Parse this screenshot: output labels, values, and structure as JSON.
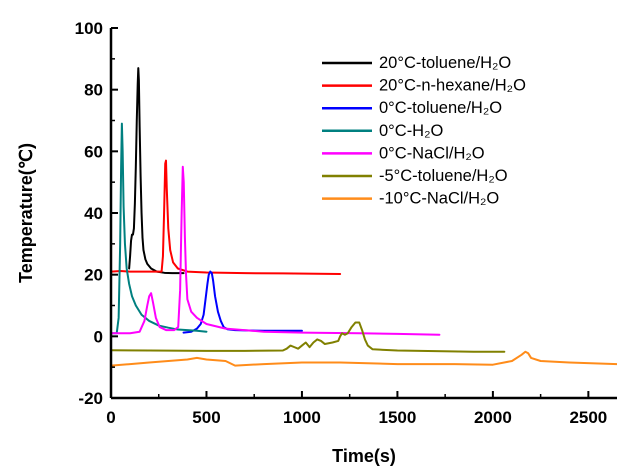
{
  "chart_data": {
    "type": "line",
    "xlabel": "Time(s)",
    "ylabel": "Temperature(℃)",
    "xlim": [
      0,
      2650
    ],
    "ylim": [
      -20,
      100
    ],
    "x_ticks": [
      "0",
      "500",
      "1000",
      "1500",
      "2000",
      "2500"
    ],
    "y_ticks": [
      "-20",
      "0",
      "20",
      "40",
      "60",
      "80",
      "100"
    ],
    "legend_position": "top-right",
    "grid": false,
    "series": [
      {
        "name": "20°C-toluene/H₂O",
        "color": "#000000",
        "points": [
          [
            95,
            22
          ],
          [
            100,
            26
          ],
          [
            105,
            31
          ],
          [
            110,
            33
          ],
          [
            115,
            33
          ],
          [
            120,
            35
          ],
          [
            125,
            43
          ],
          [
            130,
            55
          ],
          [
            135,
            70
          ],
          [
            140,
            82
          ],
          [
            143,
            87
          ],
          [
            146,
            83
          ],
          [
            150,
            68
          ],
          [
            155,
            52
          ],
          [
            160,
            40
          ],
          [
            165,
            32
          ],
          [
            170,
            28
          ],
          [
            180,
            25
          ],
          [
            190,
            23.5
          ],
          [
            210,
            22
          ],
          [
            240,
            21
          ],
          [
            280,
            20.6
          ],
          [
            320,
            20.5
          ],
          [
            380,
            20.5
          ]
        ]
      },
      {
        "name": "20°C-n-hexane/H₂O",
        "color": "#ff0000",
        "points": [
          [
            0,
            21
          ],
          [
            50,
            21.2
          ],
          [
            100,
            21
          ],
          [
            150,
            21
          ],
          [
            200,
            21
          ],
          [
            250,
            21
          ],
          [
            265,
            21
          ],
          [
            272,
            26
          ],
          [
            278,
            40
          ],
          [
            284,
            56
          ],
          [
            288,
            57
          ],
          [
            292,
            48
          ],
          [
            300,
            35
          ],
          [
            310,
            28
          ],
          [
            325,
            24
          ],
          [
            350,
            22
          ],
          [
            400,
            21
          ],
          [
            500,
            20.7
          ],
          [
            700,
            20.5
          ],
          [
            900,
            20.4
          ],
          [
            1200,
            20.2
          ]
        ]
      },
      {
        "name": "0°C-toluene/H₂O",
        "color": "#0000ff",
        "points": [
          [
            380,
            1.2
          ],
          [
            420,
            1.5
          ],
          [
            450,
            2.5
          ],
          [
            470,
            4
          ],
          [
            485,
            7
          ],
          [
            495,
            12
          ],
          [
            505,
            17
          ],
          [
            512,
            20
          ],
          [
            520,
            21
          ],
          [
            528,
            20.5
          ],
          [
            535,
            18
          ],
          [
            545,
            13
          ],
          [
            560,
            8
          ],
          [
            575,
            5
          ],
          [
            590,
            3
          ],
          [
            610,
            2.3
          ],
          [
            650,
            2
          ],
          [
            800,
            1.8
          ],
          [
            1000,
            1.8
          ]
        ]
      },
      {
        "name": "0°C-H₂O",
        "color": "#008080",
        "points": [
          [
            0,
            1
          ],
          [
            30,
            1
          ],
          [
            40,
            6
          ],
          [
            48,
            30
          ],
          [
            53,
            55
          ],
          [
            57,
            69
          ],
          [
            61,
            60
          ],
          [
            66,
            42
          ],
          [
            73,
            30
          ],
          [
            82,
            22
          ],
          [
            95,
            17
          ],
          [
            110,
            13
          ],
          [
            130,
            10
          ],
          [
            160,
            7
          ],
          [
            200,
            5
          ],
          [
            250,
            3.5
          ],
          [
            300,
            2.8
          ],
          [
            350,
            2.2
          ],
          [
            400,
            2
          ],
          [
            450,
            1.8
          ],
          [
            500,
            1.5
          ]
        ]
      },
      {
        "name": "0°C-NaCl/H₂O",
        "color": "#ff00ff",
        "points": [
          [
            0,
            1
          ],
          [
            100,
            1
          ],
          [
            150,
            1.5
          ],
          [
            175,
            5
          ],
          [
            190,
            10
          ],
          [
            200,
            13
          ],
          [
            210,
            14
          ],
          [
            220,
            11
          ],
          [
            235,
            6
          ],
          [
            255,
            3
          ],
          [
            290,
            2
          ],
          [
            330,
            2
          ],
          [
            352,
            3
          ],
          [
            362,
            15
          ],
          [
            370,
            40
          ],
          [
            376,
            55
          ],
          [
            381,
            50
          ],
          [
            387,
            32
          ],
          [
            393,
            20
          ],
          [
            400,
            12
          ],
          [
            420,
            8
          ],
          [
            450,
            6
          ],
          [
            500,
            4
          ],
          [
            600,
            2.5
          ],
          [
            800,
            1.5
          ],
          [
            1000,
            1.2
          ],
          [
            1300,
            1
          ],
          [
            1500,
            0.8
          ],
          [
            1720,
            0.5
          ]
        ]
      },
      {
        "name": "-5°C-toluene/H₂O",
        "color": "#808000",
        "points": [
          [
            0,
            -4.5
          ],
          [
            200,
            -4.6
          ],
          [
            500,
            -4.7
          ],
          [
            700,
            -4.7
          ],
          [
            900,
            -4.6
          ],
          [
            920,
            -4
          ],
          [
            940,
            -3
          ],
          [
            960,
            -3.5
          ],
          [
            980,
            -4
          ],
          [
            1000,
            -3
          ],
          [
            1020,
            -2
          ],
          [
            1040,
            -3.5
          ],
          [
            1060,
            -2
          ],
          [
            1080,
            -1
          ],
          [
            1100,
            -1.5
          ],
          [
            1120,
            -2.5
          ],
          [
            1160,
            -2
          ],
          [
            1190,
            -1.5
          ],
          [
            1200,
            0
          ],
          [
            1210,
            1
          ],
          [
            1225,
            0.5
          ],
          [
            1240,
            1
          ],
          [
            1260,
            3
          ],
          [
            1280,
            4.5
          ],
          [
            1300,
            4.5
          ],
          [
            1315,
            2
          ],
          [
            1330,
            -1
          ],
          [
            1345,
            -3
          ],
          [
            1370,
            -4.2
          ],
          [
            1500,
            -4.6
          ],
          [
            1700,
            -4.8
          ],
          [
            1900,
            -5
          ],
          [
            2060,
            -5
          ]
        ]
      },
      {
        "name": "-10°C-NaCl/H₂O",
        "color": "#ff8c1a",
        "points": [
          [
            0,
            -9.5
          ],
          [
            100,
            -9
          ],
          [
            200,
            -8.5
          ],
          [
            300,
            -8
          ],
          [
            400,
            -7.5
          ],
          [
            450,
            -7
          ],
          [
            500,
            -7.5
          ],
          [
            600,
            -8
          ],
          [
            650,
            -9.5
          ],
          [
            800,
            -9
          ],
          [
            1000,
            -8.5
          ],
          [
            1200,
            -8.5
          ],
          [
            1500,
            -9
          ],
          [
            1800,
            -9
          ],
          [
            2000,
            -9.2
          ],
          [
            2100,
            -8
          ],
          [
            2150,
            -6
          ],
          [
            2170,
            -5
          ],
          [
            2185,
            -5.5
          ],
          [
            2200,
            -7
          ],
          [
            2250,
            -8
          ],
          [
            2400,
            -8.5
          ],
          [
            2650,
            -9
          ]
        ]
      }
    ]
  }
}
